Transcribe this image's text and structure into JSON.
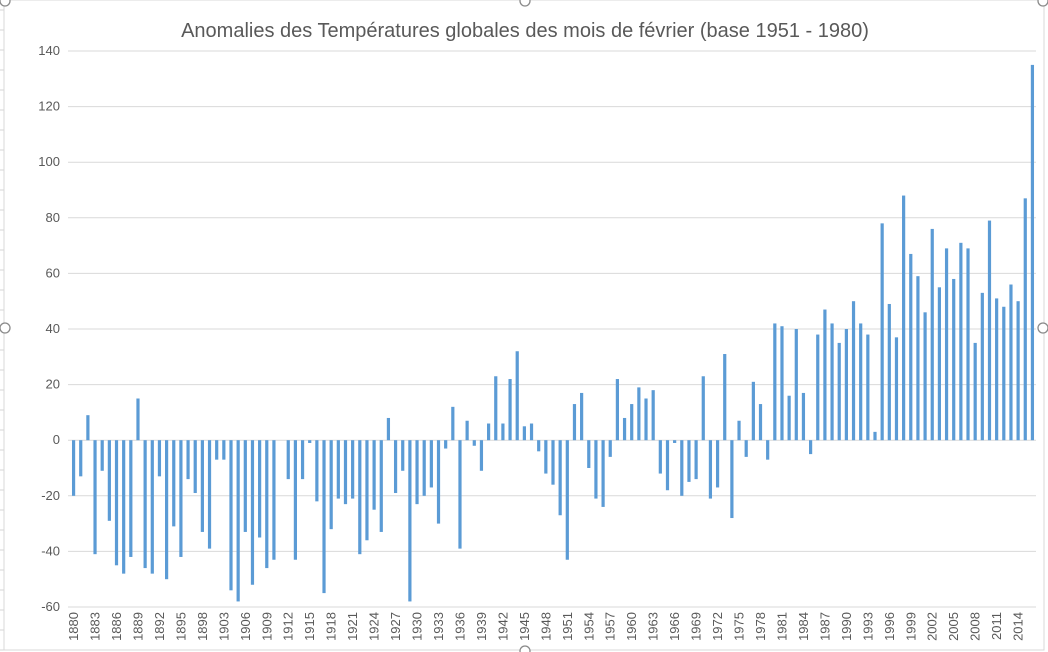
{
  "chart_data": {
    "type": "bar",
    "title": "Anomalies des Températures globales des mois de février (base 1951 - 1980)",
    "xlabel": "",
    "ylabel": "",
    "ylim": [
      -60,
      140
    ],
    "yticks": [
      -60,
      -40,
      -20,
      0,
      20,
      40,
      60,
      80,
      100,
      120,
      140
    ],
    "grid": true,
    "legend": "none",
    "color": "#5b9bd5",
    "xtick_every": 3,
    "xtick_labels": [
      "1880",
      "1883",
      "1886",
      "1889",
      "1892",
      "1895",
      "1898",
      "1903",
      "1906",
      "1909",
      "1912",
      "1915",
      "1918",
      "1921",
      "1924",
      "1927",
      "1930",
      "1933",
      "1936",
      "1939",
      "1942",
      "1945",
      "1948",
      "1951",
      "1954",
      "1957",
      "1960",
      "1963",
      "1966",
      "1969",
      "1972",
      "1975",
      "1978",
      "1981",
      "1984",
      "1987",
      "1990",
      "1993",
      "1996",
      "1999",
      "2002",
      "2005",
      "2008",
      "2011",
      "2014"
    ],
    "values": [
      -20,
      -13,
      9,
      -41,
      -11,
      -29,
      -45,
      -48,
      -42,
      15,
      -46,
      -48,
      -13,
      -50,
      -31,
      -42,
      -14,
      -19,
      -33,
      -39,
      -7,
      -7,
      -54,
      -58,
      -33,
      -52,
      -35,
      -46,
      -43,
      null,
      -14,
      -43,
      -14,
      -1,
      -22,
      -55,
      -32,
      -21,
      -23,
      -21,
      -41,
      -36,
      -25,
      -33,
      8,
      -19,
      -11,
      -58,
      -23,
      -20,
      -17,
      -30,
      -3,
      12,
      -39,
      7,
      -2,
      -11,
      6,
      23,
      6,
      22,
      32,
      5,
      6,
      -4,
      -12,
      -16,
      -27,
      -43,
      13,
      17,
      -10,
      -21,
      -24,
      -6,
      22,
      8,
      13,
      19,
      15,
      18,
      -12,
      -18,
      -1,
      -20,
      -15,
      -14,
      23,
      -21,
      -17,
      31,
      -28,
      7,
      -6,
      21,
      13,
      -7,
      42,
      41,
      16,
      40,
      17,
      -5,
      38,
      47,
      42,
      35,
      40,
      50,
      42,
      38,
      3,
      78,
      49,
      37,
      88,
      67,
      59,
      46,
      76,
      55,
      69,
      58,
      71,
      69,
      35,
      53,
      79,
      51,
      48,
      56,
      50,
      87,
      135
    ]
  }
}
